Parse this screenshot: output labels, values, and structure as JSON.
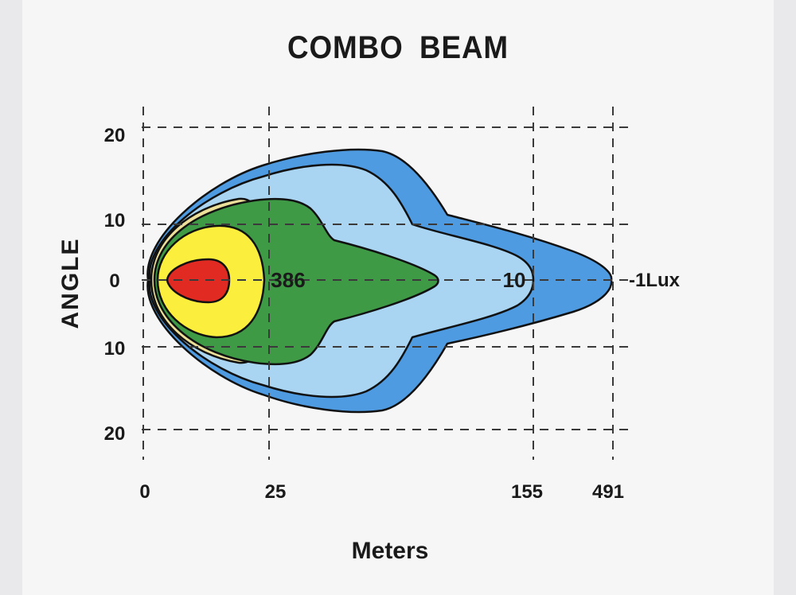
{
  "chart_data": {
    "type": "area",
    "title": "COMBO  BEAM",
    "xlabel": "Meters",
    "ylabel": "ANGLE",
    "x_ticks": [
      "0",
      "25",
      "155",
      "491"
    ],
    "y_ticks": [
      "20",
      "10",
      "0",
      "10",
      "20"
    ],
    "contour_labels": [
      "386",
      "10",
      "1Lux"
    ],
    "grid": true,
    "colors": {
      "outer": "#4f9be2",
      "light": "#a9d5f2",
      "pale_yellow": "#ecdf9a",
      "green": "#3f9a46",
      "yellow": "#fbee3c",
      "red": "#e02a22"
    }
  }
}
